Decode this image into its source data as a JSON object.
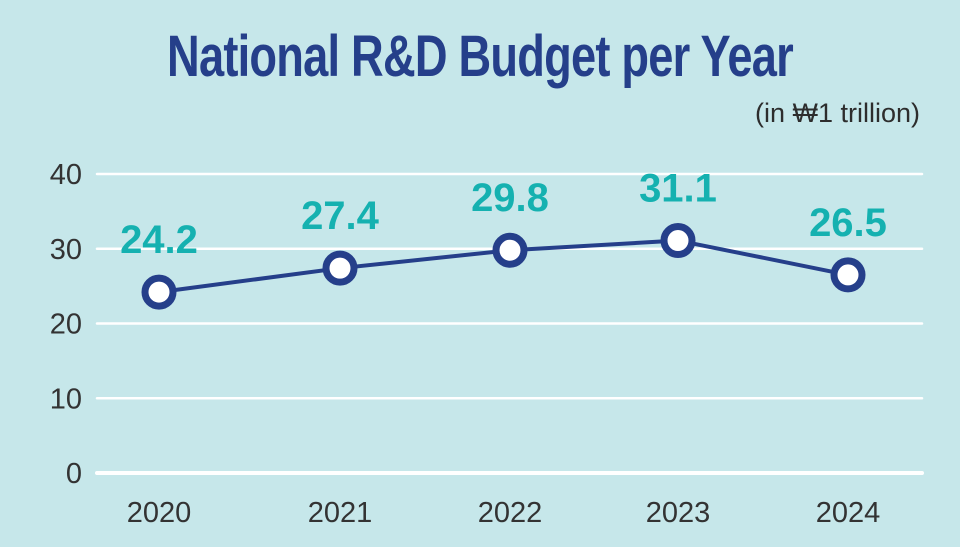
{
  "chart_data": {
    "type": "line",
    "title": "National R&D Budget per Year",
    "subtitle": "(in ₩1 trillion)",
    "xlabel": "",
    "ylabel": "",
    "categories": [
      "2020",
      "2021",
      "2022",
      "2023",
      "2024"
    ],
    "series": [
      {
        "name": "National R&D Budget",
        "values": [
          24.2,
          27.4,
          29.8,
          31.1,
          26.5
        ]
      }
    ],
    "data_labels": [
      "24.2",
      "27.4",
      "29.8",
      "31.1",
      "26.5"
    ],
    "ylim": [
      0,
      40
    ],
    "yticks": [
      0,
      10,
      20,
      30,
      40
    ],
    "ytick_labels": [
      "0",
      "10",
      "20",
      "30",
      "40"
    ],
    "grid": true,
    "legend": "none",
    "colors": {
      "background": "#c6e7ea",
      "line": "#253f8a",
      "marker_fill": "#ffffff",
      "data_label": "#15b1b0",
      "grid": "#ffffff",
      "title": "#253f8a"
    }
  }
}
